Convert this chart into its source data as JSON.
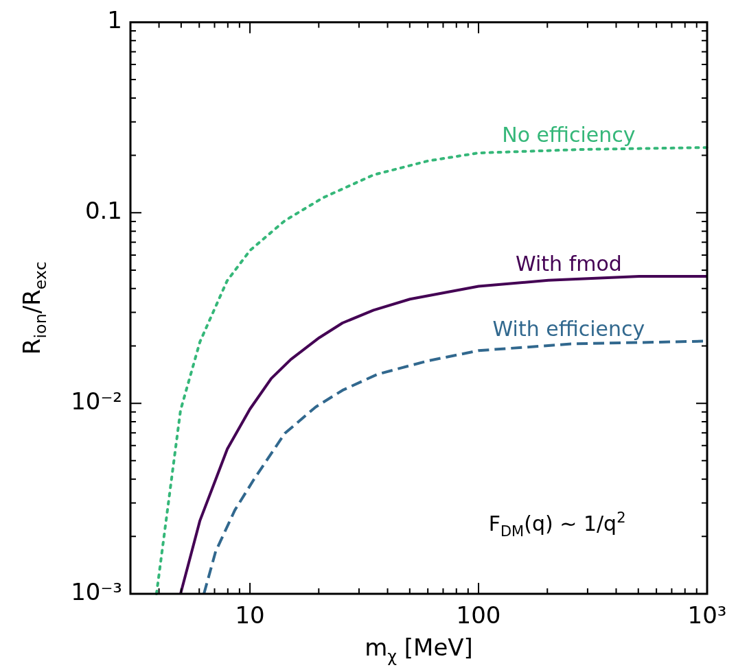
{
  "chart_data": {
    "type": "line",
    "xlabel": "m$_{χ}$ [MeV]",
    "ylabel": "R$_{ion}$/R$_{exc}$",
    "log": "xy",
    "grid": false,
    "legend": false,
    "marker": "none",
    "xlim": [
      3,
      1000
    ],
    "ylim": [
      0.001,
      1
    ],
    "xticks": [
      {
        "value": 3,
        "label": null
      },
      {
        "value": 4,
        "label": null
      },
      {
        "value": 5,
        "label": null
      },
      {
        "value": 6,
        "label": null
      },
      {
        "value": 7,
        "label": null
      },
      {
        "value": 8,
        "label": null
      },
      {
        "value": 9,
        "label": null
      },
      10,
      {
        "value": 20,
        "label": null
      },
      {
        "value": 30,
        "label": null
      },
      {
        "value": 40,
        "label": null
      },
      {
        "value": 50,
        "label": null
      },
      {
        "value": 60,
        "label": null
      },
      {
        "value": 70,
        "label": null
      },
      {
        "value": 80,
        "label": null
      },
      {
        "value": 90,
        "label": null
      },
      100,
      {
        "value": 200,
        "label": null
      },
      {
        "value": 300,
        "label": null
      },
      {
        "value": 400,
        "label": null
      },
      {
        "value": 500,
        "label": null
      },
      {
        "value": 600,
        "label": null
      },
      {
        "value": 700,
        "label": null
      },
      {
        "value": 800,
        "label": null
      },
      {
        "value": 900,
        "label": null
      },
      {
        "value": 1000,
        "label": "10³"
      }
    ],
    "yticks": [
      {
        "value": 0.001,
        "label": "10⁻³"
      },
      {
        "value": 0.002,
        "label": null
      },
      {
        "value": 0.003,
        "label": null
      },
      {
        "value": 0.004,
        "label": null
      },
      {
        "value": 0.005,
        "label": null
      },
      {
        "value": 0.006,
        "label": null
      },
      {
        "value": 0.007,
        "label": null
      },
      {
        "value": 0.008,
        "label": null
      },
      {
        "value": 0.009,
        "label": null
      },
      {
        "value": 0.01,
        "label": "10⁻²"
      },
      {
        "value": 0.02,
        "label": null
      },
      {
        "value": 0.03,
        "label": null
      },
      {
        "value": 0.04,
        "label": null
      },
      {
        "value": 0.05,
        "label": null
      },
      {
        "value": 0.06,
        "label": null
      },
      {
        "value": 0.07,
        "label": null
      },
      {
        "value": 0.08,
        "label": null
      },
      {
        "value": 0.09,
        "label": null
      },
      0.1,
      {
        "value": 0.2,
        "label": null
      },
      {
        "value": 0.3,
        "label": null
      },
      {
        "value": 0.4,
        "label": null
      },
      {
        "value": 0.5,
        "label": null
      },
      {
        "value": 0.6,
        "label": null
      },
      {
        "value": 0.7,
        "label": null
      },
      {
        "value": 0.8,
        "label": null
      },
      {
        "value": 0.9,
        "label": null
      },
      1
    ],
    "series": [
      {
        "name": "No efficiency",
        "color": "#35b779",
        "line_style": "dotted",
        "x": [
          3.9,
          4.97,
          6.04,
          7.94,
          10,
          14.2,
          20.9,
          34.7,
          60,
          100,
          286,
          1000
        ],
        "values": [
          0.001,
          0.0092,
          0.021,
          0.0439,
          0.0634,
          0.0908,
          0.12,
          0.158,
          0.187,
          0.206,
          0.215,
          0.22
        ]
      },
      {
        "name": "With fmod",
        "color": "#440154",
        "line_style": "solid",
        "x": [
          4.97,
          6.04,
          7.08,
          7.96,
          10,
          12.4,
          15.1,
          20.1,
          25.4,
          34.7,
          50.1,
          100,
          202,
          505,
          1000
        ],
        "values": [
          0.001,
          0.00242,
          0.00398,
          0.00576,
          0.00933,
          0.0135,
          0.017,
          0.0221,
          0.0264,
          0.0308,
          0.0352,
          0.0411,
          0.0442,
          0.0464,
          0.0464
        ]
      },
      {
        "name": "With efficiency",
        "color": "#31688e",
        "line_style": "dashed",
        "x": [
          6.29,
          7.08,
          8.59,
          10.4,
          14.2,
          19.4,
          25.4,
          36.1,
          60,
          100,
          254,
          1000
        ],
        "values": [
          0.001,
          0.00167,
          0.00275,
          0.00398,
          0.00695,
          0.00957,
          0.0117,
          0.0142,
          0.0167,
          0.0189,
          0.0205,
          0.0212
        ]
      }
    ],
    "annotations": [
      "F$_{DM}$(q) ∼ 1/q$^{2}$"
    ]
  }
}
